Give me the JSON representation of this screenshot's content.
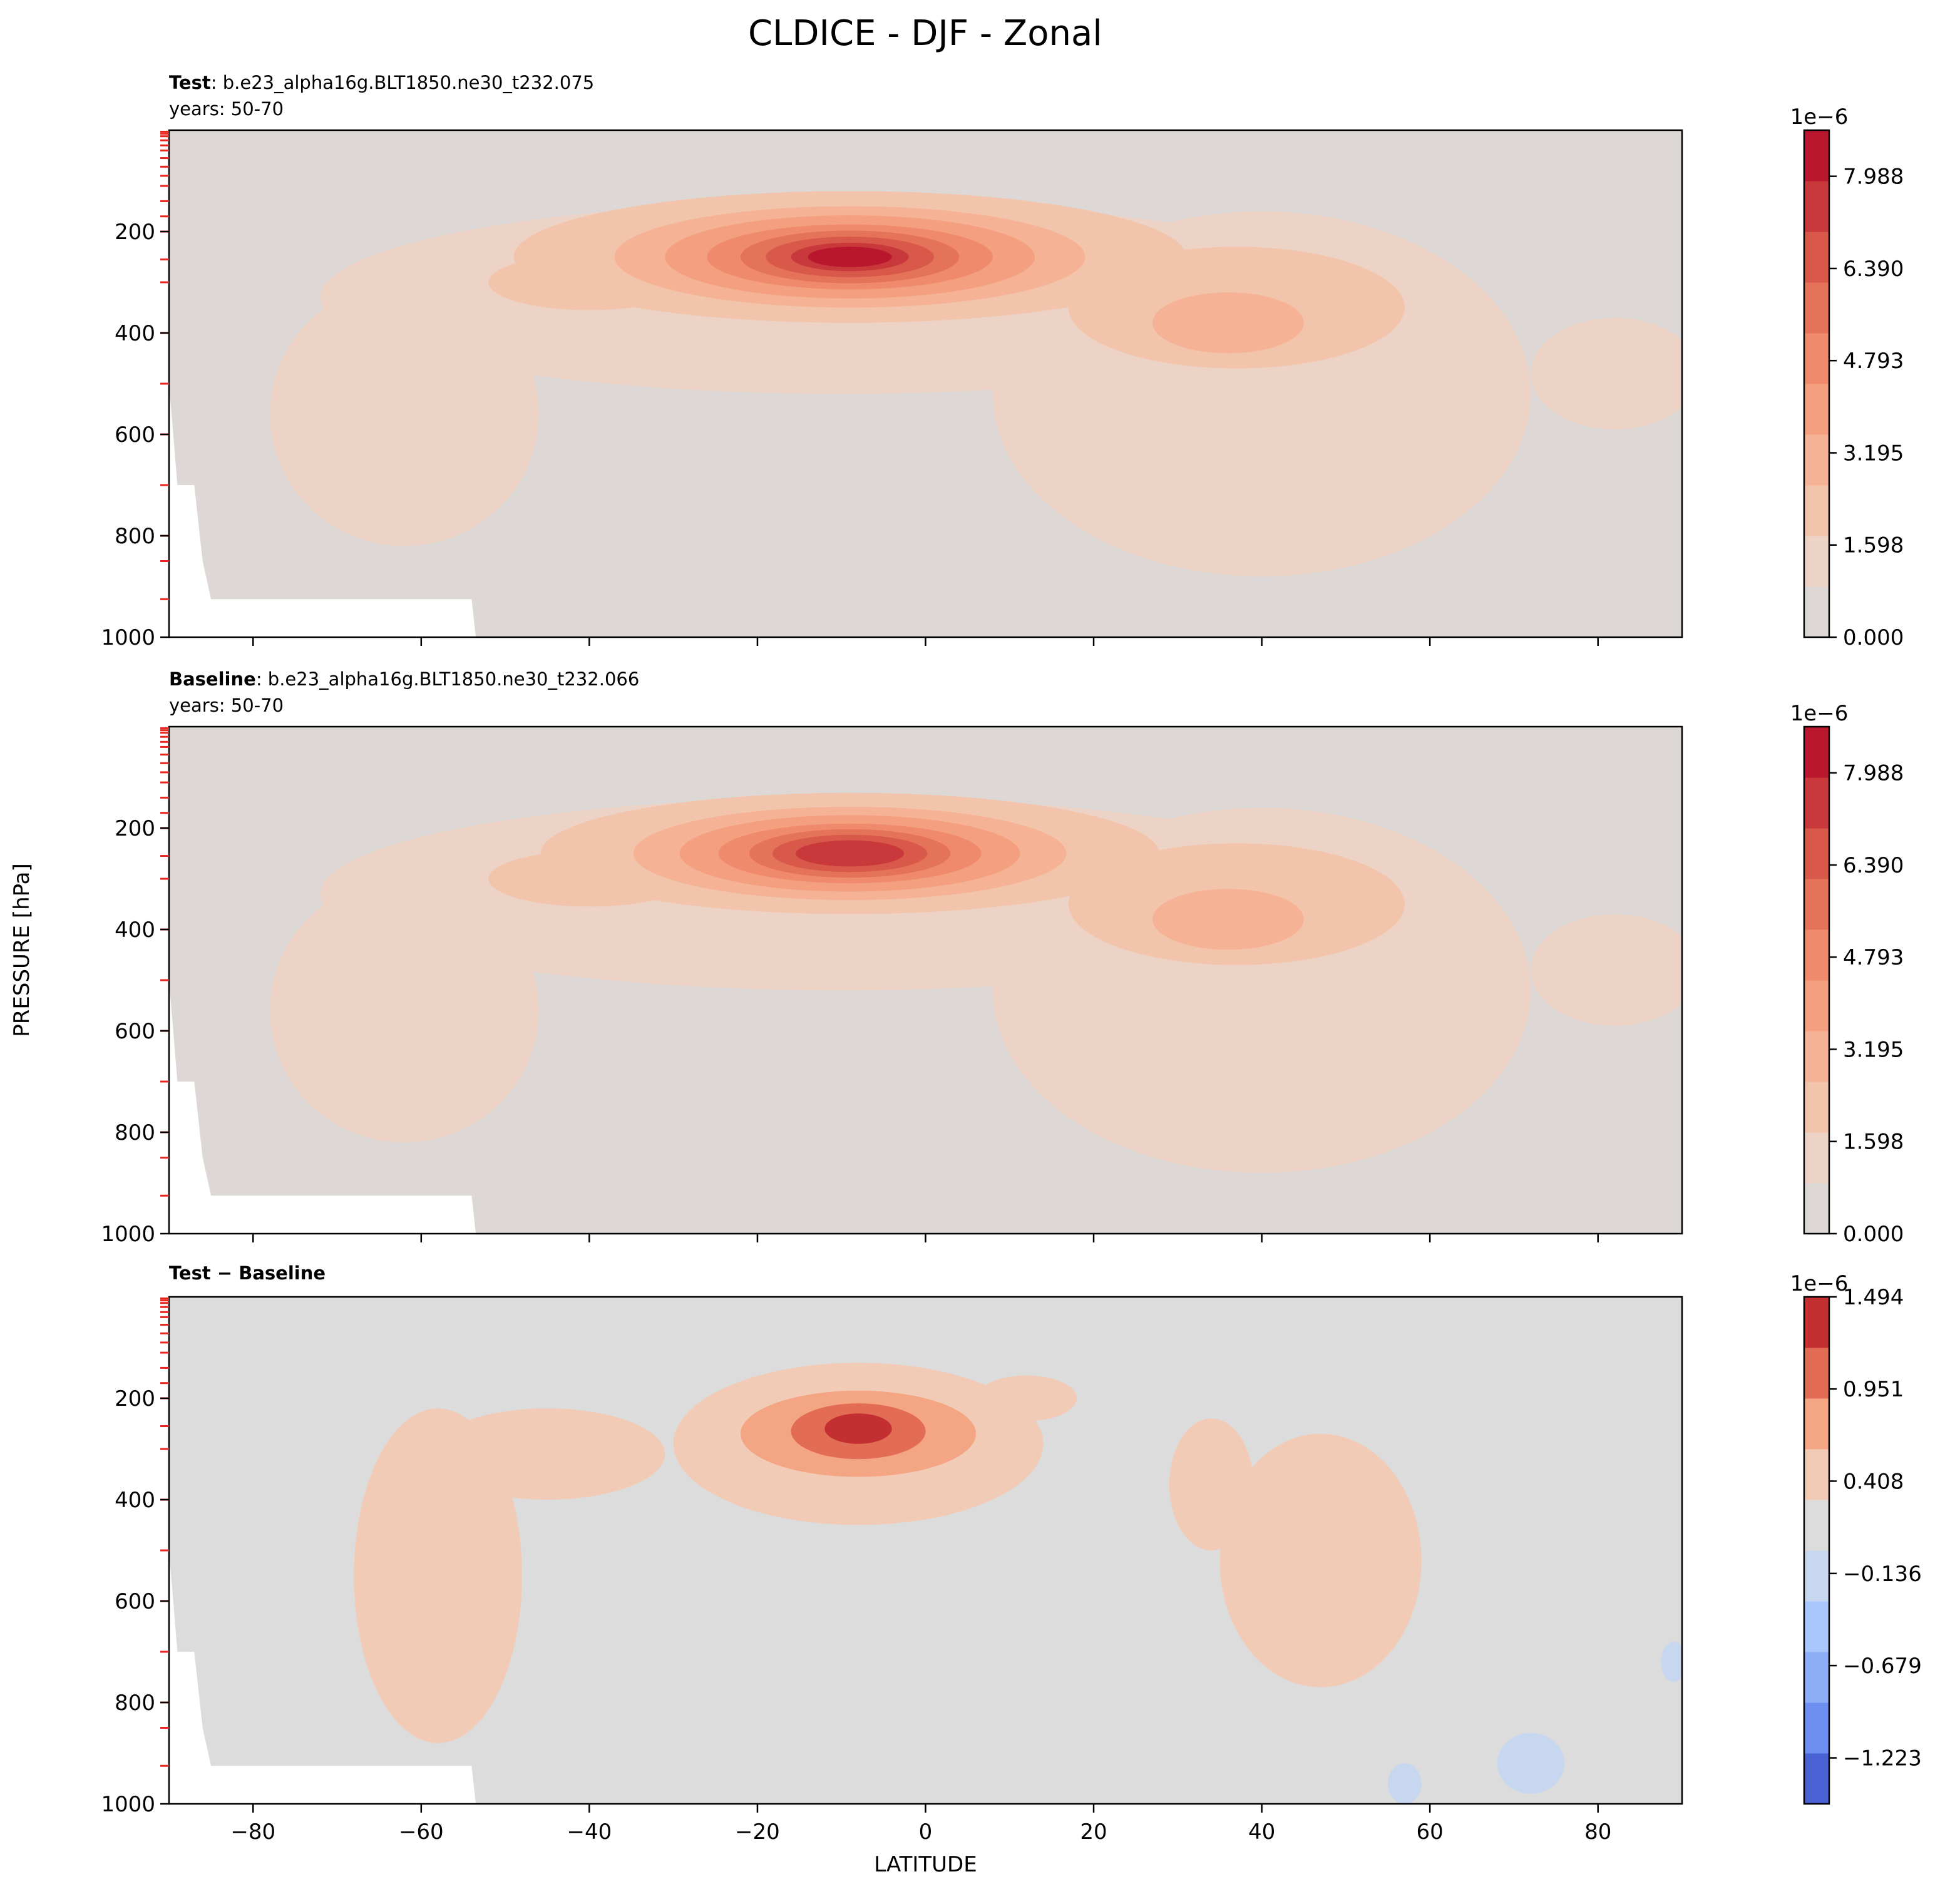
{
  "title": "CLDICE - DJF - Zonal",
  "shared_xlabel": "LATITUDE",
  "shared_ylabel": "PRESSURE [hPa]",
  "chart_data": [
    {
      "type": "heatmap",
      "panel": "test",
      "title_bold": "Test",
      "title_sep": ": ",
      "title_rest": "b.e23_alpha16g.BLT1850.ne30_t232.075",
      "subtitle": "years: 50-70",
      "xlim": [
        -90,
        90
      ],
      "ylim": [
        1000,
        0
      ],
      "xticks": [
        -80,
        -60,
        -40,
        -20,
        0,
        20,
        40,
        60,
        80
      ],
      "yticks": [
        200,
        400,
        600,
        800,
        1000
      ],
      "colorbar": {
        "scale_label": "1e−6",
        "range": [
          0.0,
          8.787
        ],
        "tick_values": [
          0.0,
          1.598,
          3.195,
          4.793,
          6.39,
          7.988
        ],
        "tick_labels": [
          "0.000",
          "1.598",
          "3.195",
          "4.793",
          "6.390",
          "7.988"
        ],
        "colors": [
          "#ddd8d5",
          "#ecd3c6",
          "#f3c4ac",
          "#f5b295",
          "#f4a080",
          "#ef8a6c",
          "#e5735a",
          "#d8584a",
          "#c9393c",
          "#b9172e"
        ]
      },
      "features": [
        {
          "desc": "upper-tropospheric maximum",
          "lat": -9,
          "p": 250,
          "value": 8.4
        },
        {
          "desc": "secondary maximum",
          "lat": 37,
          "p": 380,
          "value": 3.6
        },
        {
          "desc": "southern mid-level band",
          "lat": -40,
          "p": 300,
          "value": 2.2
        }
      ]
    },
    {
      "type": "heatmap",
      "panel": "baseline",
      "title_bold": "Baseline",
      "title_sep": ": ",
      "title_rest": "b.e23_alpha16g.BLT1850.ne30_t232.066",
      "subtitle": "years: 50-70",
      "xlim": [
        -90,
        90
      ],
      "ylim": [
        1000,
        0
      ],
      "xticks": [
        -80,
        -60,
        -40,
        -20,
        0,
        20,
        40,
        60,
        80
      ],
      "yticks": [
        200,
        400,
        600,
        800,
        1000
      ],
      "colorbar": {
        "scale_label": "1e−6",
        "range": [
          0.0,
          8.787
        ],
        "tick_values": [
          0.0,
          1.598,
          3.195,
          4.793,
          6.39,
          7.988
        ],
        "tick_labels": [
          "0.000",
          "1.598",
          "3.195",
          "4.793",
          "6.390",
          "7.988"
        ],
        "colors": [
          "#ddd8d5",
          "#ecd3c6",
          "#f3c4ac",
          "#f5b295",
          "#f4a080",
          "#ef8a6c",
          "#e5735a",
          "#d8584a",
          "#c9393c",
          "#b9172e"
        ]
      },
      "features": [
        {
          "desc": "upper-tropospheric maximum",
          "lat": -9,
          "p": 250,
          "value": 7.3
        },
        {
          "desc": "secondary maximum",
          "lat": 36,
          "p": 380,
          "value": 3.6
        },
        {
          "desc": "southern mid-level band",
          "lat": -40,
          "p": 310,
          "value": 1.8
        }
      ]
    },
    {
      "type": "heatmap",
      "panel": "difference",
      "title_bold": "Test − Baseline",
      "title_sep": "",
      "title_rest": "",
      "subtitle": "",
      "xlim": [
        -90,
        90
      ],
      "ylim": [
        1000,
        0
      ],
      "xticks": [
        -80,
        -60,
        -40,
        -20,
        0,
        20,
        40,
        60,
        80
      ],
      "yticks": [
        200,
        400,
        600,
        800,
        1000
      ],
      "xlabel": "LATITUDE",
      "colorbar": {
        "scale_label": "1e−6",
        "range": [
          -1.494,
          1.494
        ],
        "tick_values": [
          -1.223,
          -0.679,
          -0.136,
          0.408,
          0.951,
          1.494
        ],
        "tick_labels": [
          "−1.223",
          "−0.679",
          "−0.136",
          "0.408",
          "0.951",
          "1.494"
        ],
        "colors": [
          "#4961d2",
          "#6c8ff1",
          "#8daef7",
          "#aac7fd",
          "#c7d7f0",
          "#dcdcdc",
          "#f2cbb7",
          "#f4a583",
          "#e36c55",
          "#c43032"
        ]
      },
      "features": [
        {
          "desc": "positive difference maximum",
          "lat": -8,
          "p": 250,
          "value": 1.3
        },
        {
          "desc": "southern positive band",
          "lat": -60,
          "p": 500,
          "value": 0.3
        },
        {
          "desc": "northern positive band",
          "lat": 45,
          "p": 480,
          "value": 0.3
        },
        {
          "desc": "weak negative patches",
          "lat": 70,
          "p": 920,
          "value": -0.3
        }
      ]
    }
  ]
}
